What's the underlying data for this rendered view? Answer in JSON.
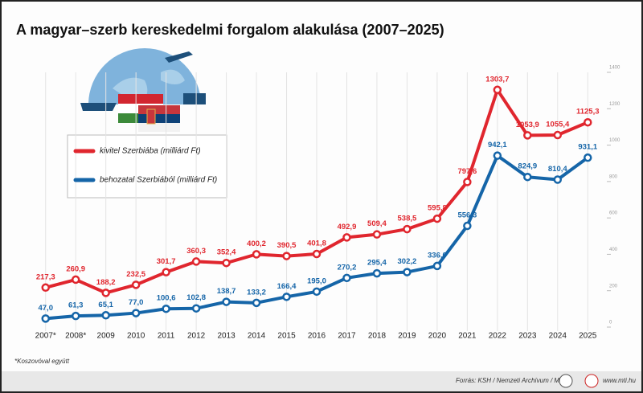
{
  "chart_data": {
    "type": "line",
    "title": "A magyar–szerb kereskedelmi forgalom alakulása (2007–2025)",
    "categories": [
      "2007*",
      "2008*",
      "2009",
      "2010",
      "2011",
      "2012",
      "2013",
      "2014",
      "2015",
      "2016",
      "2017",
      "2018",
      "2019",
      "2020",
      "2021",
      "2022",
      "2023",
      "2024",
      "2025"
    ],
    "series": [
      {
        "name": "kivitel Szerbiába (milliárd Ft)",
        "color": "#e0262e",
        "values": [
          217.3,
          260.9,
          188.2,
          232.5,
          301.7,
          360.3,
          352.4,
          400.2,
          390.5,
          401.8,
          492.9,
          509.4,
          538.5,
          595.8,
          797.6,
          1303.7,
          1053.9,
          1055.4,
          1125.3
        ],
        "value_labels": [
          "217,3",
          "260,9",
          "188,2",
          "232,5",
          "301,7",
          "360,3",
          "352,4",
          "400,2",
          "390,5",
          "401,8",
          "492,9",
          "509,4",
          "538,5",
          "595,8",
          "797,6",
          "1303,7",
          "1053,9",
          "1055,4",
          "1125,3"
        ]
      },
      {
        "name": "behozatal Szerbiából (milliárd Ft)",
        "color": "#1565a8",
        "values": [
          47.0,
          61.3,
          65.1,
          77.0,
          100.6,
          102.8,
          138.7,
          133.2,
          166.4,
          195.0,
          270.2,
          295.4,
          302.2,
          336.0,
          556.3,
          942.1,
          824.9,
          810.4,
          931.1
        ],
        "value_labels": [
          "47,0",
          "61,3",
          "65,1",
          "77,0",
          "100,6",
          "102,8",
          "138,7",
          "133,2",
          "166,4",
          "195,0",
          "270,2",
          "295,4",
          "302,2",
          "336,0",
          "556,3",
          "942,1",
          "824,9",
          "810,4",
          "931,1"
        ]
      }
    ],
    "ylim": [
      0,
      1400
    ],
    "yticks": [
      0,
      200,
      400,
      600,
      800,
      1000,
      1200,
      1400
    ],
    "grid": true,
    "footnote": "*Koszovóval együtt",
    "source": "Forrás: KSH / Nemzeti Archívum / MTI",
    "website": "www.mti.hu"
  }
}
